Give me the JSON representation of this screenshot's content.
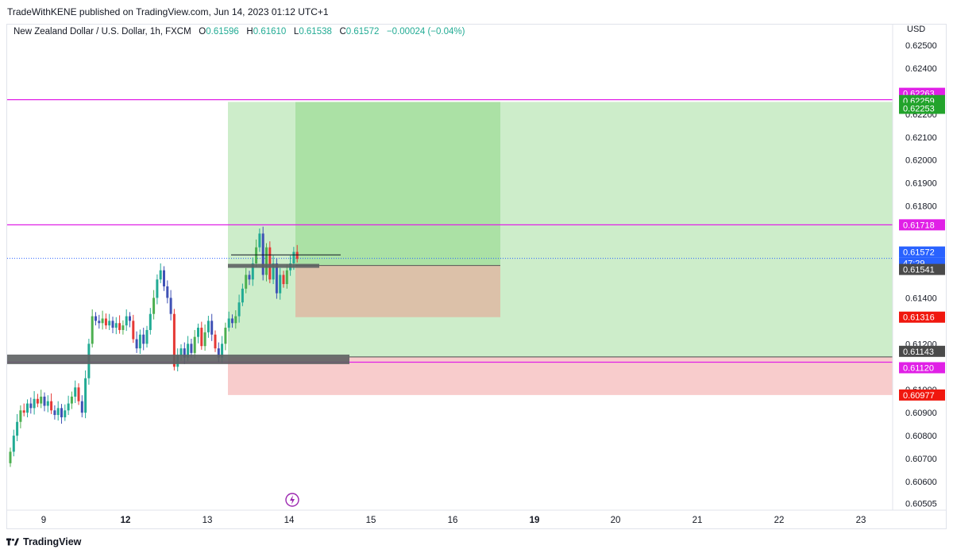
{
  "header": {
    "published_line": "TradeWithKENE published on TradingView.com, Jun 14, 2023 01:12 UTC+1"
  },
  "legend": {
    "symbol_line": "New Zealand Dollar / U.S. Dollar, 1h, FXCM",
    "o_label": "O",
    "o_value": "0.61596",
    "h_label": "H",
    "h_value": "0.61610",
    "l_label": "L",
    "l_value": "0.61538",
    "c_label": "C",
    "c_value": "0.61572",
    "change": "−0.00024 (−0.04%)"
  },
  "price_axis": {
    "currency": "USD",
    "ticks": [
      "0.62500",
      "0.62400",
      "0.62200",
      "0.62100",
      "0.62000",
      "0.61900",
      "0.61800",
      "0.61600",
      "0.61400",
      "0.61200",
      "0.61000",
      "0.60900",
      "0.60800",
      "0.60700",
      "0.60600",
      "0.60505"
    ]
  },
  "price_labels": [
    {
      "text": "0.62263",
      "color": "#e020e6"
    },
    {
      "text": "0.62259",
      "color": "#22a32b"
    },
    {
      "text": "0.62253",
      "color": "#22a32b"
    },
    {
      "text": "0.61718",
      "color": "#e020e6"
    },
    {
      "text": "0.61572",
      "color": "#2962ff"
    },
    {
      "text": "47:29",
      "color": "#2962ff"
    },
    {
      "text": "0.61541",
      "color": "#4a4a4a"
    },
    {
      "text": "0.61316",
      "color": "#f0170e"
    },
    {
      "text": "0.61143",
      "color": "#4a4a4a"
    },
    {
      "text": "0.61120",
      "color": "#e020e6"
    },
    {
      "text": "0.60977",
      "color": "#f0170e"
    }
  ],
  "time_axis": {
    "ticks": [
      {
        "label": "9",
        "bold": false
      },
      {
        "label": "12",
        "bold": true
      },
      {
        "label": "13",
        "bold": false
      },
      {
        "label": "14",
        "bold": false
      },
      {
        "label": "15",
        "bold": false
      },
      {
        "label": "16",
        "bold": false
      },
      {
        "label": "19",
        "bold": true
      },
      {
        "label": "20",
        "bold": false
      },
      {
        "label": "21",
        "bold": false
      },
      {
        "label": "22",
        "bold": false
      },
      {
        "label": "23",
        "bold": false
      }
    ]
  },
  "colors": {
    "up": "#22ab94",
    "up_alt": "#4caf50",
    "down": "#3f51b5",
    "down_alt": "#e53935",
    "magenta": "#e020e6",
    "profit_zone": "#c8ebc4",
    "profit_zone_dark": "#a7dfa1",
    "loss_zone": "#f8c9c9",
    "loss_zone_orange": "#dcbfa6",
    "grey_bar": "#5d6062"
  },
  "footer": {
    "brand": "TradingView"
  }
}
